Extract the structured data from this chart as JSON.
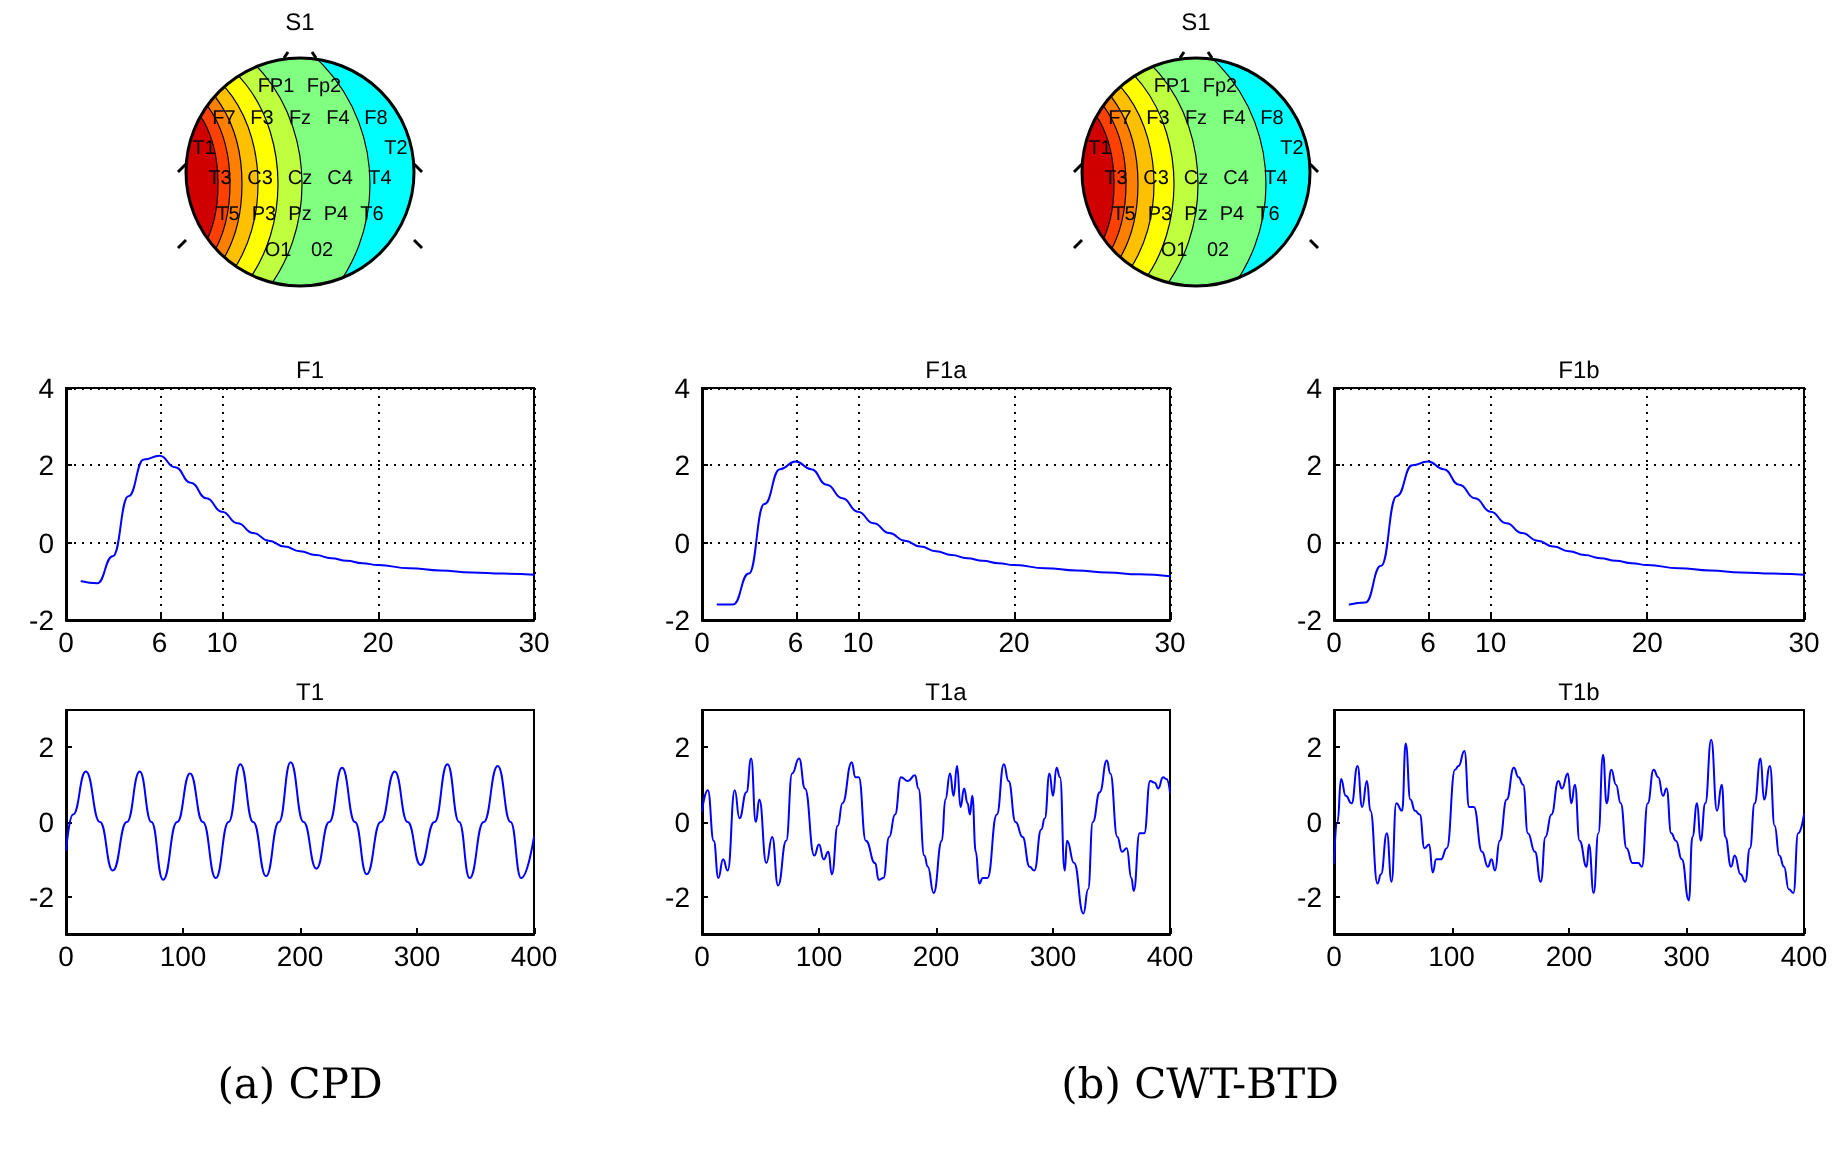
{
  "chart_data": [
    {
      "type": "other",
      "title": "S1",
      "annotations": [
        "FP1",
        "Fp2",
        "F7",
        "F3",
        "Fz",
        "F4",
        "F8",
        "T1",
        "T2",
        "T3",
        "C3",
        "Cz",
        "C4",
        "T4",
        "T5",
        "P3",
        "Pz",
        "P4",
        "T6",
        "O1",
        "02"
      ]
    },
    {
      "type": "other",
      "title": "S1",
      "annotations": [
        "FP1",
        "Fp2",
        "F7",
        "F3",
        "Fz",
        "F4",
        "F8",
        "T1",
        "T2",
        "T3",
        "C3",
        "Cz",
        "C4",
        "T4",
        "T5",
        "P3",
        "Pz",
        "P4",
        "T6",
        "O1",
        "02"
      ]
    },
    {
      "type": "line",
      "title": "F1",
      "xlim": [
        0,
        30
      ],
      "xticks": [
        0,
        6,
        10,
        20,
        30
      ],
      "ylim": [
        -2,
        4
      ],
      "yticks": [
        -2,
        0,
        2,
        4
      ],
      "grid": true,
      "series": [
        {
          "color": "#0000ff",
          "x": [
            1,
            2,
            3,
            4,
            5,
            6,
            7,
            8,
            9,
            10,
            11,
            12,
            13,
            14,
            15,
            16,
            17,
            18,
            19,
            20,
            22,
            24,
            26,
            28,
            30
          ],
          "values": [
            -1,
            -1.05,
            -0.35,
            1.2,
            2.15,
            2.25,
            1.95,
            1.55,
            1.15,
            0.8,
            0.5,
            0.25,
            0.05,
            -0.1,
            -0.22,
            -0.32,
            -0.4,
            -0.47,
            -0.53,
            -0.58,
            -0.66,
            -0.72,
            -0.77,
            -0.8,
            -0.83
          ]
        }
      ]
    },
    {
      "type": "line",
      "title": "F1a",
      "xlim": [
        0,
        30
      ],
      "xticks": [
        0,
        6,
        10,
        20,
        30
      ],
      "ylim": [
        -2,
        4
      ],
      "yticks": [
        -2,
        0,
        2,
        4
      ],
      "grid": true,
      "series": [
        {
          "color": "#0000ff",
          "x": [
            1,
            2,
            3,
            4,
            5,
            6,
            7,
            8,
            9,
            10,
            11,
            12,
            13,
            14,
            15,
            16,
            17,
            18,
            19,
            20,
            22,
            24,
            26,
            28,
            30
          ],
          "values": [
            -1.6,
            -1.6,
            -0.8,
            1.0,
            1.9,
            2.1,
            1.9,
            1.5,
            1.15,
            0.8,
            0.5,
            0.25,
            0.05,
            -0.1,
            -0.22,
            -0.32,
            -0.4,
            -0.47,
            -0.53,
            -0.58,
            -0.66,
            -0.72,
            -0.77,
            -0.82,
            -0.87
          ]
        }
      ]
    },
    {
      "type": "line",
      "title": "F1b",
      "xlim": [
        0,
        30
      ],
      "xticks": [
        0,
        6,
        10,
        20,
        30
      ],
      "ylim": [
        -2,
        4
      ],
      "yticks": [
        -2,
        0,
        2,
        4
      ],
      "grid": true,
      "series": [
        {
          "color": "#0000ff",
          "x": [
            1,
            2,
            3,
            4,
            5,
            6,
            7,
            8,
            9,
            10,
            11,
            12,
            13,
            14,
            15,
            16,
            17,
            18,
            19,
            20,
            22,
            24,
            26,
            28,
            30
          ],
          "values": [
            -1.6,
            -1.55,
            -0.6,
            1.2,
            2.0,
            2.1,
            1.9,
            1.5,
            1.15,
            0.8,
            0.5,
            0.25,
            0.05,
            -0.1,
            -0.22,
            -0.32,
            -0.4,
            -0.47,
            -0.53,
            -0.58,
            -0.66,
            -0.72,
            -0.77,
            -0.8,
            -0.83
          ]
        }
      ]
    },
    {
      "type": "line",
      "title": "T1",
      "xlim": [
        0,
        400
      ],
      "xticks": [
        0,
        100,
        200,
        300,
        400
      ],
      "ylim": [
        -3,
        3
      ],
      "yticks": [
        -2,
        0,
        2
      ],
      "annotations": [
        "(a) CPD"
      ],
      "series": [
        {
          "color": "#0000ff",
          "x": [
            0,
            6,
            17,
            29,
            40,
            52,
            63,
            73,
            83,
            95,
            106,
            117,
            128,
            139,
            149,
            160,
            171,
            182,
            192,
            203,
            214,
            225,
            236,
            247,
            257,
            269,
            281,
            292,
            303,
            315,
            326,
            336,
            345,
            357,
            369,
            380,
            389,
            400
          ],
          "values": [
            -0.75,
            0.2,
            1.35,
            0.0,
            -1.3,
            0.0,
            1.35,
            0.0,
            -1.55,
            0.0,
            1.3,
            0.0,
            -1.5,
            0.0,
            1.55,
            0.0,
            -1.45,
            0.0,
            1.6,
            0.0,
            -1.25,
            0.0,
            1.45,
            0.0,
            -1.4,
            0.0,
            1.35,
            0.0,
            -1.15,
            0.0,
            1.55,
            0.0,
            -1.5,
            0.0,
            1.5,
            0.0,
            -1.5,
            -0.4
          ]
        }
      ]
    },
    {
      "type": "line",
      "title": "T1a",
      "xlim": [
        0,
        400
      ],
      "xticks": [
        0,
        100,
        200,
        300,
        400
      ],
      "ylim": [
        -3,
        3
      ],
      "yticks": [
        -2,
        0,
        2
      ],
      "annotations": [
        "(b) CWT-BTD"
      ],
      "series": [
        {
          "color": "#0000ff",
          "x": [
            0,
            5,
            10,
            14,
            18,
            22,
            28,
            32,
            38,
            42,
            46,
            49,
            55,
            60,
            65,
            72,
            77,
            83,
            88,
            96,
            100,
            104,
            108,
            111,
            116,
            120,
            128,
            131,
            134,
            140,
            148,
            151,
            155,
            160,
            165,
            170,
            176,
            182,
            185,
            190,
            193,
            198,
            205,
            208,
            212,
            215,
            218,
            221,
            224,
            227,
            229,
            231,
            234,
            237,
            240,
            244,
            252,
            258,
            262,
            268,
            274,
            280,
            284,
            290,
            293,
            297,
            300,
            303,
            306,
            310,
            312,
            318,
            326,
            330,
            334,
            340,
            346,
            349,
            355,
            359,
            363,
            367,
            369,
            374,
            378,
            383,
            387,
            390,
            394,
            397,
            400
          ],
          "values": [
            0.3,
            0.85,
            -0.5,
            -1.5,
            -1.0,
            -1.3,
            0.85,
            0.1,
            0.8,
            1.7,
            0.0,
            0.6,
            -1.1,
            -0.4,
            -1.7,
            -0.5,
            1.3,
            1.7,
            0.9,
            -0.9,
            -0.6,
            -1.0,
            -0.8,
            -1.4,
            -0.1,
            0.5,
            1.6,
            1.2,
            1.2,
            -0.5,
            -1.1,
            -1.55,
            -1.5,
            -0.4,
            0.2,
            1.2,
            1.1,
            1.25,
            0.9,
            -0.9,
            -1.2,
            -1.9,
            -0.5,
            0.6,
            1.3,
            0.7,
            1.5,
            0.4,
            0.9,
            0.5,
            0.2,
            0.7,
            -0.8,
            -1.65,
            -1.5,
            -1.5,
            0.2,
            1.55,
            1.1,
            0.0,
            -0.4,
            -1.2,
            -1.3,
            -0.2,
            0.1,
            1.3,
            0.7,
            1.45,
            1.2,
            -1.3,
            -0.5,
            -1.1,
            -2.45,
            -1.8,
            0.0,
            0.8,
            1.65,
            1.3,
            -0.4,
            -0.8,
            -0.7,
            -1.5,
            -1.85,
            -0.3,
            -0.3,
            1.1,
            1.05,
            0.9,
            1.2,
            1.15,
            0.8
          ]
        }
      ]
    },
    {
      "type": "line",
      "title": "T1b",
      "xlim": [
        0,
        400
      ],
      "xticks": [
        0,
        100,
        200,
        300,
        400
      ],
      "ylim": [
        -3,
        3
      ],
      "yticks": [
        -2,
        0,
        2
      ],
      "series": [
        {
          "color": "#0000ff",
          "x": [
            0,
            3,
            6,
            10,
            15,
            20,
            24,
            28,
            31,
            37,
            40,
            45,
            49,
            53,
            58,
            61,
            65,
            69,
            73,
            77,
            81,
            84,
            87,
            91,
            96,
            103,
            106,
            111,
            115,
            119,
            126,
            131,
            134,
            137,
            141,
            147,
            153,
            157,
            161,
            165,
            171,
            176,
            180,
            185,
            191,
            194,
            199,
            202,
            205,
            209,
            215,
            217,
            221,
            225,
            229,
            232,
            236,
            240,
            244,
            249,
            254,
            259,
            262,
            267,
            272,
            276,
            280,
            283,
            287,
            291,
            296,
            302,
            305,
            309,
            312,
            316,
            321,
            326,
            330,
            333,
            338,
            341,
            346,
            350,
            354,
            358,
            363,
            366,
            371,
            375,
            379,
            383,
            387,
            391,
            395,
            400
          ],
          "values": [
            -1.1,
            0.0,
            1.15,
            0.7,
            0.5,
            1.5,
            0.4,
            1.1,
            0.3,
            -1.65,
            -1.4,
            -0.3,
            -1.6,
            0.5,
            0.3,
            2.1,
            0.6,
            0.3,
            0.2,
            -0.7,
            -0.6,
            -1.35,
            -1.0,
            -1.0,
            -0.7,
            1.4,
            1.5,
            1.9,
            0.4,
            0.4,
            -0.8,
            -1.2,
            -1.0,
            -1.3,
            -0.5,
            0.6,
            1.45,
            1.2,
            1.0,
            -0.3,
            -0.8,
            -1.6,
            -0.4,
            0.2,
            1.1,
            0.9,
            1.3,
            0.5,
            1.0,
            -0.5,
            -1.2,
            -0.6,
            -1.9,
            -0.3,
            1.8,
            0.5,
            1.4,
            1.0,
            0.5,
            -0.7,
            -1.1,
            -1.1,
            -1.2,
            0.5,
            1.4,
            1.2,
            0.7,
            0.9,
            -0.3,
            -0.5,
            -1.0,
            -2.1,
            -0.4,
            0.5,
            -0.5,
            0.5,
            2.2,
            0.3,
            1.0,
            -0.4,
            -1.2,
            -0.9,
            -1.4,
            -1.6,
            -0.7,
            0.5,
            1.7,
            0.6,
            1.5,
            -0.1,
            -0.9,
            -1.2,
            -1.8,
            -1.9,
            -0.3,
            0.2
          ]
        }
      ]
    }
  ]
}
